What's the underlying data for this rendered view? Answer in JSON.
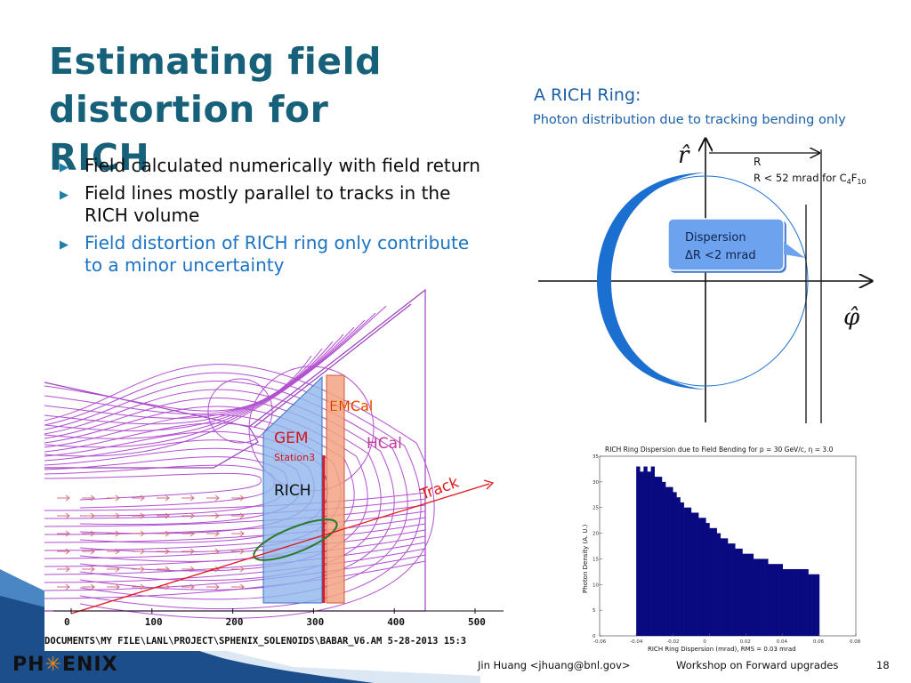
{
  "slide": {
    "title": "Estimating field distortion for RICH",
    "bullets": [
      {
        "text": "Field calculated numerically with field return"
      },
      {
        "text": "Field lines mostly parallel to tracks in the RICH volume"
      },
      {
        "text": "Field distortion of RICH ring only contribute to a minor uncertainty"
      }
    ],
    "bullet_marker": "▶"
  },
  "ring_diagram": {
    "heading": "A RICH Ring:",
    "subheading": "Photon distribution due to tracking bending only",
    "r_axis_label": "r̂",
    "phi_axis_label": "φ̂",
    "radius_label": "R",
    "radius_note_prefix": "R < 52 mrad for C",
    "radius_note_sub1": "4",
    "radius_note_mid": "F",
    "radius_note_sub2": "10",
    "callout_line1": "Dispersion",
    "callout_line2": "ΔR <2 mrad",
    "ring_color": "#1a6fd0"
  },
  "field_map": {
    "labels": {
      "emcal": "EMCal",
      "gem": "GEM",
      "station": "Station3",
      "hcal": "HCal",
      "rich": "RICH",
      "track": "Track"
    },
    "x_ticks": [
      "0",
      "100",
      "200",
      "300",
      "400",
      "500"
    ],
    "file_path": "DOCUMENTS\\MY FILE\\LANL\\PROJECT\\SPHENIX_SOLENOIDS\\BABAR_V6.AM  5-28-2013  15:3",
    "field_line_color": "#b24fd0",
    "track_color": "#e0181c"
  },
  "chart_data": {
    "type": "bar",
    "title": "RICH Ring Dispersion due to Field Bending for p = 30 GeV/c, η = 3.0",
    "xlabel": "RICH Ring Dispersion (mrad), RMS = 0.03 mrad",
    "ylabel": "Photon Density (A. U.)",
    "xlim": [
      -0.06,
      0.08
    ],
    "ylim": [
      0,
      35
    ],
    "x_ticks": [
      "-0.06",
      "-0.04",
      "-0.02",
      "0",
      "0.02",
      "0.04",
      "0.06",
      "0.08"
    ],
    "y_ticks": [
      "0",
      "5",
      "10",
      "15",
      "20",
      "25",
      "30",
      "35"
    ],
    "bin_width": 0.002,
    "x": [
      -0.04,
      -0.038,
      -0.036,
      -0.034,
      -0.032,
      -0.03,
      -0.028,
      -0.026,
      -0.024,
      -0.022,
      -0.02,
      -0.018,
      -0.016,
      -0.014,
      -0.012,
      -0.01,
      -0.008,
      -0.006,
      -0.004,
      -0.002,
      0,
      0.002,
      0.004,
      0.006,
      0.008,
      0.01,
      0.012,
      0.014,
      0.016,
      0.018,
      0.02,
      0.022,
      0.024,
      0.026,
      0.028,
      0.03,
      0.032,
      0.034,
      0.036,
      0.038,
      0.04,
      0.042,
      0.044,
      0.046,
      0.048,
      0.05,
      0.052,
      0.054,
      0.056,
      0.058
    ],
    "values": [
      33,
      32,
      33,
      32,
      33,
      31,
      31,
      30,
      29,
      29,
      28,
      27,
      26,
      25,
      25,
      24,
      24,
      23,
      23,
      22,
      21,
      21,
      20,
      19,
      19,
      18,
      18,
      17,
      17,
      16,
      16,
      16,
      15,
      15,
      15,
      15,
      14,
      14,
      14,
      14,
      13,
      13,
      13,
      13,
      13,
      13,
      13,
      12,
      12,
      12
    ],
    "bar_color": "#0a0a80"
  },
  "footer": {
    "logo_left": "PH",
    "logo_sun": "✳",
    "logo_right": "ENIX",
    "author": "Jin Huang <jhuang@bnl.gov>",
    "workshop": "Workshop on Forward upgrades",
    "page": "18"
  }
}
